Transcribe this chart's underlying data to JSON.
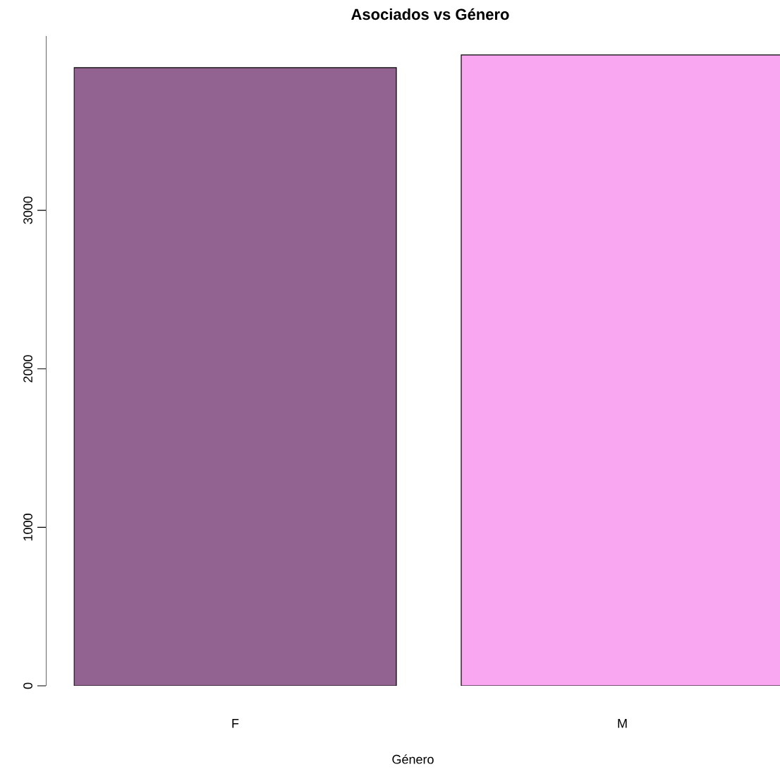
{
  "chart_data": {
    "type": "bar",
    "title": "Asociados vs Género",
    "xlabel": "Género",
    "categories": [
      "F",
      "M"
    ],
    "values": [
      3900,
      3980
    ],
    "colors": [
      "#926390",
      "#f9a7f1"
    ],
    "ylim": [
      0,
      4100
    ],
    "yticks": [
      0,
      1000,
      2000,
      3000
    ]
  }
}
